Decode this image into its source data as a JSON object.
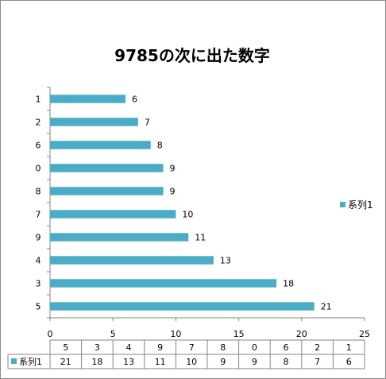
{
  "chart_data": {
    "type": "bar",
    "orientation": "horizontal",
    "title": "9785の次に出た数字",
    "categories": [
      "5",
      "3",
      "4",
      "9",
      "7",
      "8",
      "0",
      "6",
      "2",
      "1"
    ],
    "series": [
      {
        "name": "系列1",
        "values": [
          21,
          18,
          13,
          11,
          10,
          9,
          9,
          8,
          7,
          6
        ]
      }
    ],
    "xlim": [
      0,
      25
    ],
    "x_ticks": [
      0,
      5,
      10,
      15,
      20,
      25
    ],
    "grid": false,
    "legend_position": "right",
    "data_table": true,
    "colors": {
      "bar": "#4bacc6",
      "axis": "#868686",
      "table_border": "#868686"
    }
  }
}
